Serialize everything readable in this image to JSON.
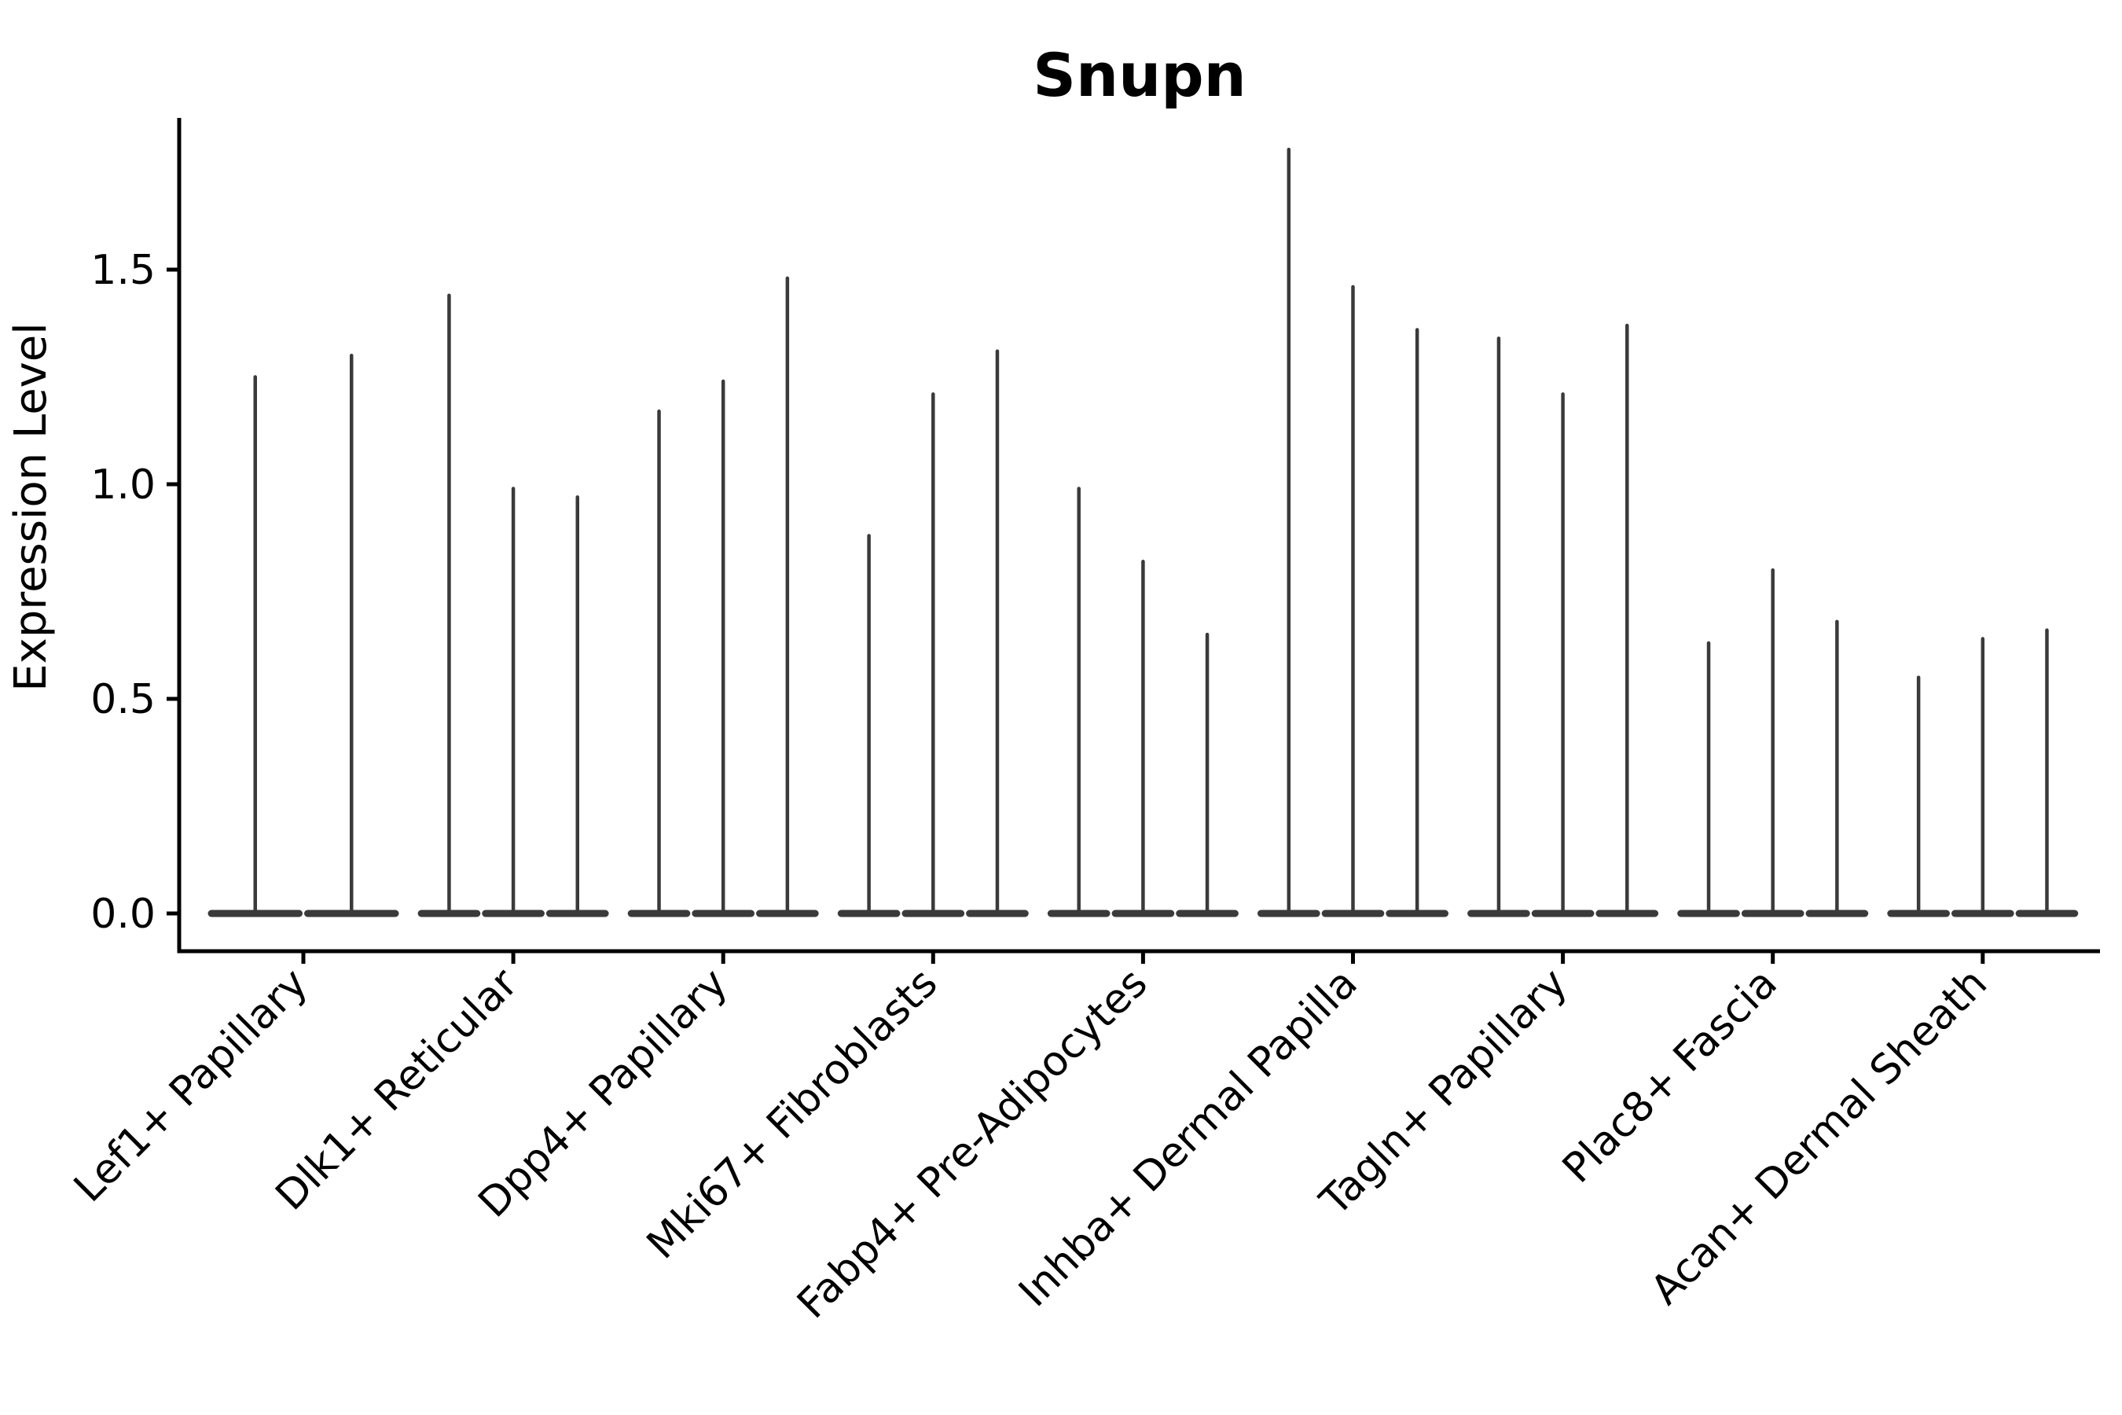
{
  "chart_data": {
    "type": "violin",
    "title": "Snupn",
    "xlabel": "",
    "ylabel": "Expression Level",
    "ytick_labels": [
      "0.0",
      "0.5",
      "1.0",
      "1.5"
    ],
    "ytick_values": [
      0.0,
      0.5,
      1.0,
      1.5
    ],
    "ylim": [
      -0.09,
      1.85
    ],
    "grid": false,
    "legend": "none",
    "violin_color": "#3a3a3a",
    "axis_color": "#000000",
    "background_color": "#ffffff",
    "groups": [
      {
        "label": "Lef1+ Papillary",
        "violin_max_values": [
          1.25,
          1.3
        ]
      },
      {
        "label": "Dlk1+ Reticular",
        "violin_max_values": [
          1.44,
          0.99,
          0.97
        ]
      },
      {
        "label": "Dpp4+ Papillary",
        "violin_max_values": [
          1.17,
          1.24,
          1.48
        ]
      },
      {
        "label": "Mki67+ Fibroblasts",
        "violin_max_values": [
          0.88,
          1.21,
          1.31
        ]
      },
      {
        "label": "Fabp4+ Pre-Adipocytes",
        "violin_max_values": [
          0.99,
          0.82,
          0.65
        ]
      },
      {
        "label": "Inhba+ Dermal Papilla",
        "violin_max_values": [
          1.78,
          1.46,
          1.36
        ]
      },
      {
        "label": "Tagln+ Papillary",
        "violin_max_values": [
          1.34,
          1.21,
          1.37
        ]
      },
      {
        "label": "Plac8+ Fascia",
        "violin_max_values": [
          0.63,
          0.8,
          0.68
        ]
      },
      {
        "label": "Acan+ Dermal Sheath",
        "violin_max_values": [
          0.55,
          0.64,
          0.66
        ]
      }
    ],
    "note_violin_shape": "each violin collapses to a thin spike reaching its max expression value with a wide flat density base at 0"
  }
}
